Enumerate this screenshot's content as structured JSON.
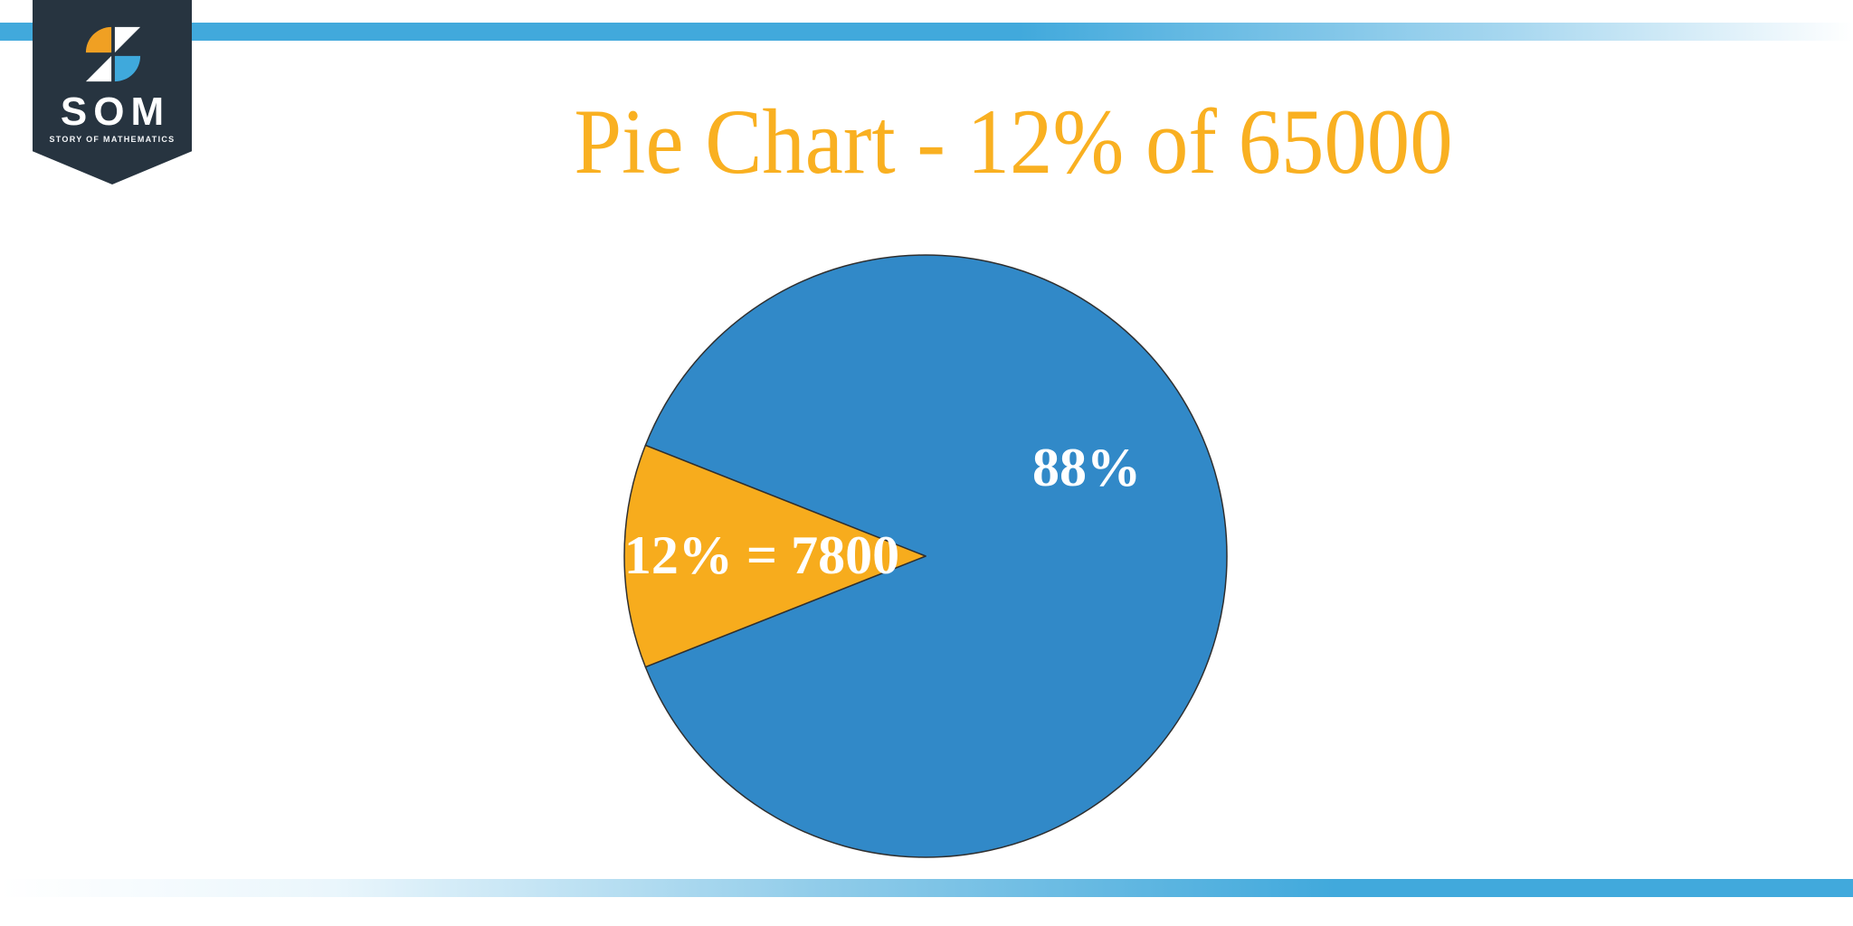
{
  "title": "Pie Chart - 12% of 65000",
  "logo": {
    "acronym": "SOM",
    "tagline": "STORY OF MATHEMATICS"
  },
  "colors": {
    "accent_bar_blue": "#41a9dc",
    "badge_navy": "#273440",
    "title_orange": "#f9b021",
    "pie_blue": "#3189c8",
    "pie_orange": "#f7ac1d",
    "slice_edge": "#2f2f2f",
    "label_white": "#ffffff",
    "logo_orange": "#f0a023",
    "logo_blue": "#3fa9dc",
    "logo_white": "#ffffff"
  },
  "chart_data": {
    "type": "pie",
    "title": "Pie Chart - 12% of 65000",
    "total": 65000,
    "highlight_percent": 12,
    "highlight_value": 7800,
    "categories": [
      "88%",
      "12%"
    ],
    "values": [
      88,
      12
    ],
    "segments": [
      {
        "label": "88%",
        "value": 88,
        "color": "#3189c8"
      },
      {
        "label": "12% = 7800",
        "value": 12,
        "color": "#f7ac1d"
      }
    ],
    "legend": "none",
    "minor_slice_center_angle_deg": 180
  }
}
